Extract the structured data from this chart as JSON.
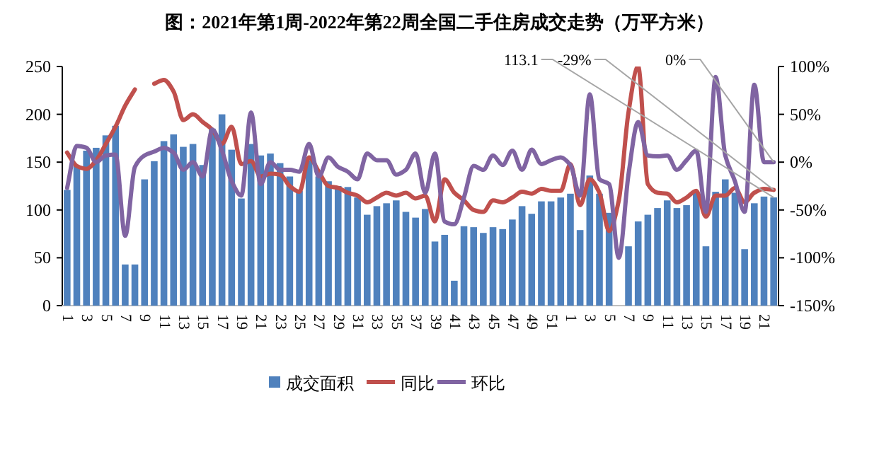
{
  "chart_data": {
    "type": "bar",
    "title": "图：2021年第1周-2022年第22周全国二手住房成交走势（万平方米）",
    "categories": [
      "1",
      null,
      "3",
      null,
      "5",
      null,
      "7",
      null,
      "9",
      null,
      "11",
      null,
      "13",
      null,
      "15",
      null,
      "17",
      null,
      "19",
      null,
      "21",
      null,
      "23",
      null,
      "25",
      null,
      "27",
      null,
      "29",
      null,
      "31",
      null,
      "33",
      null,
      "35",
      null,
      "37",
      null,
      "39",
      null,
      "41",
      null,
      "43",
      null,
      "45",
      null,
      "47",
      null,
      "49",
      null,
      "51",
      null,
      "1",
      null,
      "3",
      null,
      "5",
      null,
      "7",
      null,
      "9",
      null,
      "11",
      null,
      "13",
      null,
      "15",
      null,
      "17",
      null,
      "19",
      null,
      "21",
      null
    ],
    "series": [
      {
        "name": "成交面积",
        "color": "#4f81bd",
        "value_labels": [
          null,
          null,
          null,
          null,
          null,
          null,
          null,
          null,
          null,
          null,
          null,
          null,
          null,
          null,
          null,
          null,
          null,
          null,
          null,
          null,
          null,
          null,
          null,
          null,
          null,
          null,
          null,
          null,
          null,
          null,
          null,
          null,
          null,
          null,
          null,
          null,
          null,
          null,
          null,
          null,
          null,
          null,
          null,
          null,
          null,
          null,
          null,
          null,
          null,
          null,
          null,
          null,
          null,
          null,
          null,
          null,
          null,
          null,
          null,
          null,
          null,
          null,
          null,
          null,
          null,
          null,
          null,
          null,
          null,
          null,
          null,
          null,
          null,
          "113.1"
        ],
        "values": [
          121,
          146,
          162,
          165,
          178,
          188,
          43,
          43,
          132,
          151,
          172,
          179,
          166,
          169,
          147,
          185,
          200,
          163,
          112,
          169,
          157,
          159,
          149,
          135,
          120,
          152,
          135,
          130,
          125,
          124,
          113,
          95,
          104,
          107,
          110,
          98,
          92,
          101,
          67,
          74,
          26,
          83,
          82,
          76,
          82,
          80,
          90,
          104,
          96,
          109,
          109,
          113,
          117,
          79,
          136,
          117,
          97,
          null,
          62,
          88,
          95,
          102,
          110,
          102,
          105,
          118,
          62,
          119,
          132,
          118,
          59,
          107,
          114,
          113.1
        ]
      },
      {
        "name": "同比",
        "type": "line",
        "axis": "y2",
        "color": "#c0504d",
        "value_labels": [
          null,
          null,
          null,
          null,
          null,
          null,
          null,
          null,
          null,
          null,
          null,
          null,
          null,
          null,
          null,
          null,
          null,
          null,
          null,
          null,
          null,
          null,
          null,
          null,
          null,
          null,
          null,
          null,
          null,
          null,
          null,
          null,
          null,
          null,
          null,
          null,
          null,
          null,
          null,
          null,
          null,
          null,
          null,
          null,
          null,
          null,
          null,
          null,
          null,
          null,
          null,
          null,
          null,
          null,
          null,
          null,
          null,
          null,
          null,
          null,
          null,
          null,
          null,
          null,
          null,
          null,
          null,
          null,
          null,
          null,
          null,
          null,
          null,
          "-29%"
        ],
        "values": [
          10,
          -4,
          -7,
          2,
          19,
          37,
          59,
          76,
          null,
          82,
          86,
          74,
          44,
          50,
          42,
          34,
          19,
          37,
          -2,
          1,
          -15,
          -12,
          -13,
          -25,
          -31,
          5,
          -10,
          -25,
          -27,
          -32,
          -35,
          -42,
          -37,
          -32,
          -35,
          -32,
          -38,
          -35,
          -62,
          -18,
          -32,
          -40,
          -50,
          -52,
          -40,
          -42,
          -37,
          -31,
          -33,
          -28,
          -30,
          -30,
          -2,
          -45,
          -18,
          -32,
          -72,
          -40,
          52,
          100,
          -23,
          -32,
          -33,
          -42,
          -37,
          -30,
          -57,
          -35,
          -35,
          -27,
          -42,
          -32,
          -28,
          -29
        ]
      },
      {
        "name": "环比",
        "type": "line",
        "axis": "y2",
        "color": "#8064a2",
        "value_labels": [
          null,
          null,
          null,
          null,
          null,
          null,
          null,
          null,
          null,
          null,
          null,
          null,
          null,
          null,
          null,
          null,
          null,
          null,
          null,
          null,
          null,
          null,
          null,
          null,
          null,
          null,
          null,
          null,
          null,
          null,
          null,
          null,
          null,
          null,
          null,
          null,
          null,
          null,
          null,
          null,
          null,
          null,
          null,
          null,
          null,
          null,
          null,
          null,
          null,
          null,
          null,
          null,
          null,
          null,
          null,
          null,
          null,
          null,
          null,
          null,
          null,
          null,
          null,
          null,
          null,
          null,
          null,
          null,
          null,
          null,
          null,
          null,
          null,
          "0%"
        ],
        "values": [
          -27,
          17,
          15,
          0,
          7,
          8,
          -77,
          -5,
          7,
          11,
          15,
          10,
          -8,
          0,
          -15,
          34,
          12,
          -20,
          -35,
          52,
          -23,
          0,
          -8,
          -8,
          -10,
          19,
          -15,
          5,
          -5,
          -10,
          -18,
          9,
          2,
          2,
          -13,
          -8,
          9,
          -32,
          9,
          -62,
          -65,
          -37,
          -4,
          -8,
          7,
          -3,
          12,
          -8,
          13,
          -2,
          2,
          5,
          -3,
          -35,
          71,
          -18,
          -23,
          -100,
          -13,
          42,
          7,
          6,
          7,
          -8,
          2,
          12,
          -52,
          89,
          7,
          -20,
          -52,
          81,
          0,
          0
        ]
      }
    ],
    "ylim": [
      0,
      250
    ],
    "yticks": [
      0,
      50,
      100,
      150,
      200,
      250
    ],
    "y2lim": [
      -150,
      100
    ],
    "y2ticks": [
      {
        "value": -150,
        "label": "-150%"
      },
      {
        "value": -100,
        "label": "-100%"
      },
      {
        "value": -50,
        "label": "-50%"
      },
      {
        "value": 0,
        "label": "0%"
      },
      {
        "value": 50,
        "label": "50%"
      },
      {
        "value": 100,
        "label": "100%"
      }
    ],
    "legend": "bottom",
    "grid": false
  }
}
